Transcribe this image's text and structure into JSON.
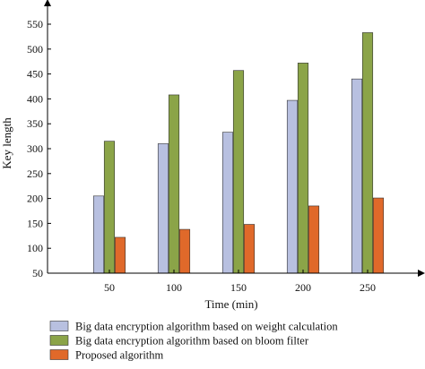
{
  "chart_data": {
    "type": "bar",
    "title": "",
    "xlabel": "Time (min)",
    "ylabel": "Key length",
    "categories": [
      "50",
      "100",
      "150",
      "200",
      "250"
    ],
    "ylim": [
      50,
      550
    ],
    "yticks": [
      50,
      100,
      150,
      200,
      250,
      300,
      350,
      400,
      450,
      500,
      550
    ],
    "grid": false,
    "legend_position": "bottom",
    "series": [
      {
        "name": "Big data encryption algorithm based on weight calculation",
        "color": "#b8c0e0",
        "values": [
          205,
          310,
          333,
          397,
          440
        ]
      },
      {
        "name": "Big data encryption algorithm based on bloom filter",
        "color": "#8ba448",
        "values": [
          315,
          408,
          457,
          472,
          533
        ]
      },
      {
        "name": "Proposed algorithm",
        "color": "#e0692a",
        "values": [
          122,
          138,
          148,
          185,
          201
        ]
      }
    ]
  }
}
